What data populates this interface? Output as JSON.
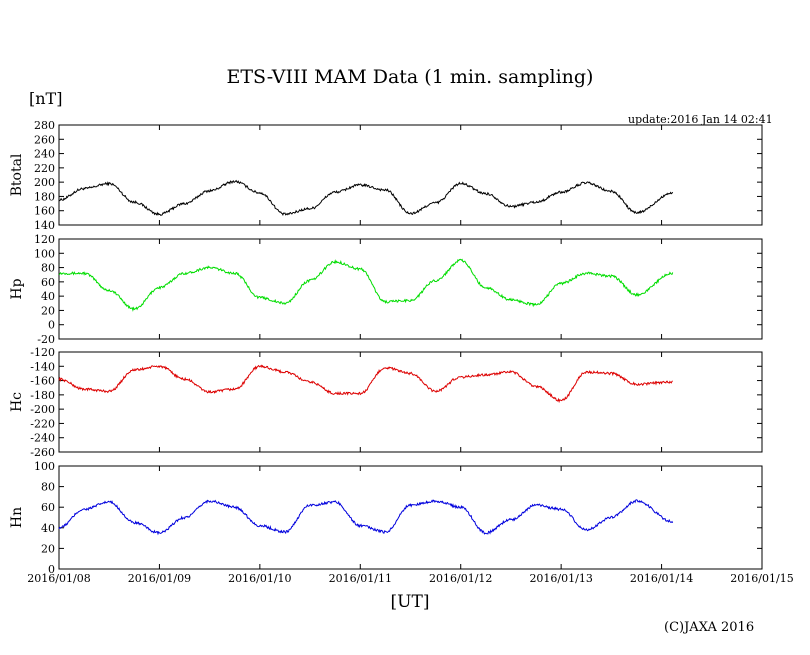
{
  "header": {
    "title": "ETS-VIII MAM Data (1 min. sampling)",
    "unit": "[nT]",
    "update": "update:2016 Jan 14 02:41"
  },
  "footer": {
    "xlabel": "[UT]",
    "credit": "(C)JAXA 2016"
  },
  "chart_data": [
    {
      "type": "line",
      "ylabel": "Btotal",
      "ylim": [
        140,
        280
      ],
      "yticks": [
        "140",
        "160",
        "180",
        "200",
        "220",
        "240",
        "260",
        "280"
      ],
      "xlim": [
        "2016/01/08",
        "2016/01/15"
      ],
      "series": [
        {
          "color": "#000000",
          "x": [
            "2016/01/08 00:00",
            "2016/01/08 06:00",
            "2016/01/08 12:00",
            "2016/01/08 18:00",
            "2016/01/09 00:00",
            "2016/01/09 06:00",
            "2016/01/09 12:00",
            "2016/01/09 18:00",
            "2016/01/10 00:00",
            "2016/01/10 06:00",
            "2016/01/10 12:00",
            "2016/01/10 18:00",
            "2016/01/11 00:00",
            "2016/01/11 06:00",
            "2016/01/11 12:00",
            "2016/01/11 18:00",
            "2016/01/12 00:00",
            "2016/01/12 06:00",
            "2016/01/12 12:00",
            "2016/01/12 18:00",
            "2016/01/13 00:00",
            "2016/01/13 06:00",
            "2016/01/13 12:00",
            "2016/01/13 18:00",
            "2016/01/14 02:41"
          ],
          "values": [
            175,
            191,
            198,
            172,
            155,
            170,
            188,
            201,
            185,
            155,
            163,
            186,
            196,
            189,
            156,
            171,
            198,
            184,
            166,
            172,
            186,
            199,
            187,
            157,
            185
          ]
        }
      ]
    },
    {
      "type": "line",
      "ylabel": "Hp",
      "ylim": [
        -20,
        120
      ],
      "yticks": [
        "-20",
        "0",
        "20",
        "40",
        "60",
        "80",
        "100",
        "120"
      ],
      "xlim": [
        "2016/01/08",
        "2016/01/15"
      ],
      "series": [
        {
          "color": "#00dd00",
          "x": [
            "2016/01/08 00:00",
            "2016/01/08 06:00",
            "2016/01/08 12:00",
            "2016/01/08 18:00",
            "2016/01/09 00:00",
            "2016/01/09 06:00",
            "2016/01/09 12:00",
            "2016/01/09 18:00",
            "2016/01/10 00:00",
            "2016/01/10 06:00",
            "2016/01/10 12:00",
            "2016/01/10 18:00",
            "2016/01/11 00:00",
            "2016/01/11 06:00",
            "2016/01/11 12:00",
            "2016/01/11 18:00",
            "2016/01/12 00:00",
            "2016/01/12 06:00",
            "2016/01/12 12:00",
            "2016/01/12 18:00",
            "2016/01/13 00:00",
            "2016/01/13 06:00",
            "2016/01/13 12:00",
            "2016/01/13 18:00",
            "2016/01/14 02:41"
          ],
          "values": [
            72,
            72,
            48,
            22,
            52,
            72,
            80,
            72,
            38,
            30,
            62,
            88,
            78,
            32,
            34,
            62,
            90,
            52,
            35,
            28,
            58,
            72,
            68,
            42,
            72
          ]
        }
      ]
    },
    {
      "type": "line",
      "ylabel": "Hc",
      "ylim": [
        -260,
        -120
      ],
      "yticks": [
        "-260",
        "-240",
        "-220",
        "-200",
        "-180",
        "-160",
        "-140",
        "-120"
      ],
      "xlim": [
        "2016/01/08",
        "2016/01/15"
      ],
      "series": [
        {
          "color": "#dd0000",
          "x": [
            "2016/01/08 00:00",
            "2016/01/08 06:00",
            "2016/01/08 12:00",
            "2016/01/08 18:00",
            "2016/01/09 00:00",
            "2016/01/09 06:00",
            "2016/01/09 12:00",
            "2016/01/09 18:00",
            "2016/01/10 00:00",
            "2016/01/10 06:00",
            "2016/01/10 12:00",
            "2016/01/10 18:00",
            "2016/01/11 00:00",
            "2016/01/11 06:00",
            "2016/01/11 12:00",
            "2016/01/11 18:00",
            "2016/01/12 00:00",
            "2016/01/12 06:00",
            "2016/01/12 12:00",
            "2016/01/12 18:00",
            "2016/01/13 00:00",
            "2016/01/13 06:00",
            "2016/01/13 12:00",
            "2016/01/13 18:00",
            "2016/01/14 02:41"
          ],
          "values": [
            -158,
            -172,
            -175,
            -145,
            -140,
            -158,
            -176,
            -172,
            -140,
            -148,
            -162,
            -178,
            -178,
            -142,
            -150,
            -175,
            -155,
            -152,
            -148,
            -168,
            -188,
            -148,
            -150,
            -165,
            -162
          ]
        }
      ]
    },
    {
      "type": "line",
      "ylabel": "Hn",
      "ylim": [
        0,
        100
      ],
      "yticks": [
        "0",
        "20",
        "40",
        "60",
        "80",
        "100"
      ],
      "xlim": [
        "2016/01/08",
        "2016/01/15"
      ],
      "xticks": [
        "2016/01/08",
        "2016/01/09",
        "2016/01/10",
        "2016/01/11",
        "2016/01/12",
        "2016/01/13",
        "2016/01/14",
        "2016/01/15"
      ],
      "series": [
        {
          "color": "#0000dd",
          "x": [
            "2016/01/08 00:00",
            "2016/01/08 06:00",
            "2016/01/08 12:00",
            "2016/01/08 18:00",
            "2016/01/09 00:00",
            "2016/01/09 06:00",
            "2016/01/09 12:00",
            "2016/01/09 18:00",
            "2016/01/10 00:00",
            "2016/01/10 06:00",
            "2016/01/10 12:00",
            "2016/01/10 18:00",
            "2016/01/11 00:00",
            "2016/01/11 06:00",
            "2016/01/11 12:00",
            "2016/01/11 18:00",
            "2016/01/12 00:00",
            "2016/01/12 06:00",
            "2016/01/12 12:00",
            "2016/01/12 18:00",
            "2016/01/13 00:00",
            "2016/01/13 06:00",
            "2016/01/13 12:00",
            "2016/01/13 18:00",
            "2016/01/14 02:41"
          ],
          "values": [
            40,
            58,
            65,
            45,
            35,
            50,
            66,
            60,
            42,
            36,
            62,
            65,
            42,
            36,
            62,
            66,
            60,
            35,
            48,
            62,
            58,
            38,
            50,
            66,
            46
          ]
        }
      ]
    }
  ]
}
